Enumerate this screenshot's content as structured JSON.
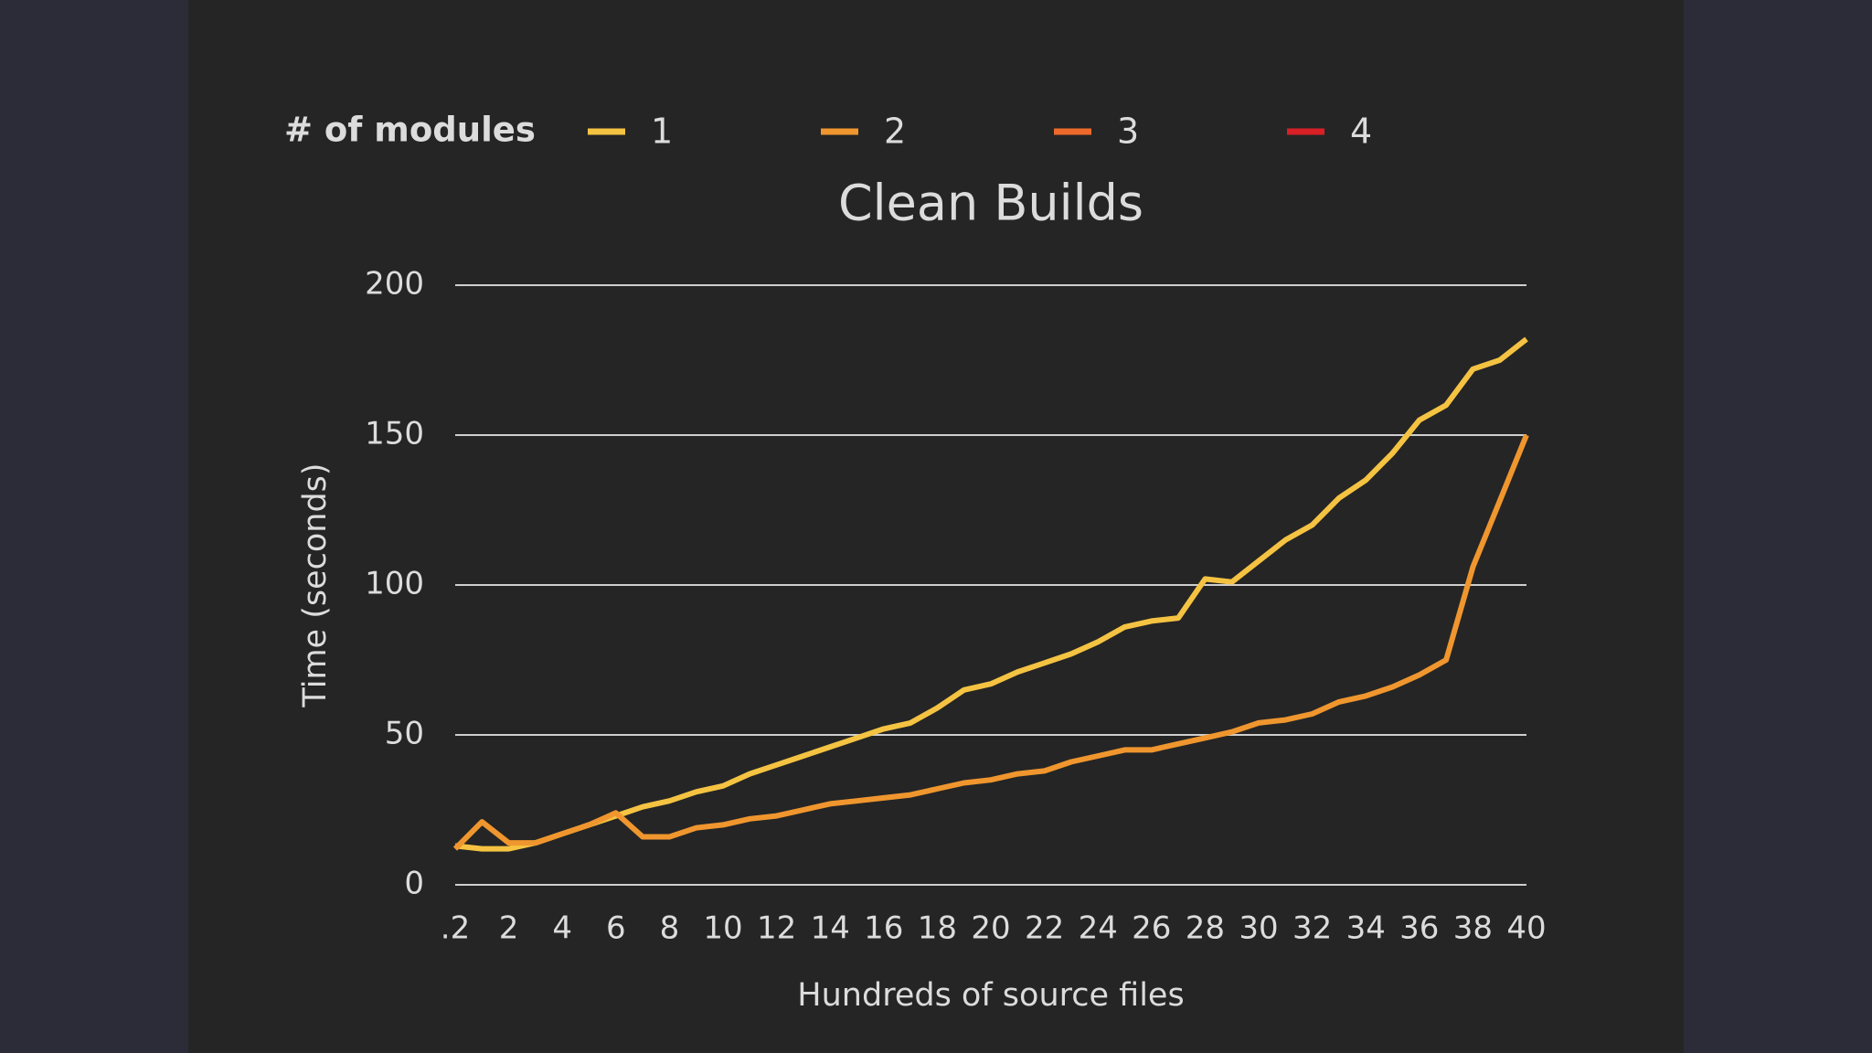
{
  "chart_data": {
    "type": "line",
    "title": "Clean Builds",
    "legend_title": "# of modules",
    "x_label": "Hundreds of source files",
    "y_label": "Time (seconds)",
    "categories": [
      ".2",
      null,
      "2",
      null,
      "4",
      null,
      "6",
      null,
      "8",
      null,
      "10",
      null,
      "12",
      null,
      "14",
      null,
      "16",
      null,
      "18",
      null,
      "20",
      null,
      "22",
      null,
      "24",
      null,
      "26",
      null,
      "28",
      null,
      "30",
      null,
      "32",
      null,
      "34",
      null,
      "36",
      null,
      "38",
      null,
      "40"
    ],
    "series": [
      {
        "name": "1",
        "color": "#f5c342",
        "values": [
          13,
          12,
          12,
          14,
          17,
          20,
          23,
          26,
          28,
          31,
          33,
          37,
          40,
          43,
          46,
          49,
          52,
          54,
          59,
          65,
          67,
          71,
          74,
          77,
          81,
          86,
          88,
          89,
          102,
          101,
          108,
          115,
          120,
          129,
          135,
          144,
          155,
          160,
          172,
          175,
          182
        ]
      },
      {
        "name": "2",
        "color": "#f0962e",
        "values": [
          12,
          21,
          14,
          14,
          17,
          20,
          24,
          16,
          16,
          19,
          20,
          22,
          23,
          25,
          27,
          28,
          29,
          30,
          32,
          34,
          35,
          37,
          38,
          41,
          43,
          45,
          45,
          47,
          49,
          51,
          54,
          55,
          57,
          61,
          63,
          66,
          70,
          75,
          106,
          128,
          150
        ]
      },
      {
        "name": "3",
        "color": "#ee6a2a",
        "values": [
          null,
          null,
          null,
          null,
          null,
          null,
          null,
          null,
          null,
          null,
          null,
          null,
          null,
          null,
          null,
          null,
          null,
          null,
          null,
          null,
          null,
          null,
          null,
          null,
          null,
          null,
          null,
          null,
          null,
          null,
          null,
          null,
          null,
          null,
          null,
          null,
          null,
          null,
          null,
          null,
          null
        ]
      },
      {
        "name": "4",
        "color": "#d91f26",
        "values": [
          null,
          null,
          null,
          null,
          null,
          null,
          null,
          null,
          null,
          null,
          null,
          null,
          null,
          null,
          null,
          null,
          null,
          null,
          null,
          null,
          null,
          null,
          null,
          null,
          null,
          null,
          null,
          null,
          null,
          null,
          null,
          null,
          null,
          null,
          null,
          null,
          null,
          null,
          null,
          null,
          null
        ]
      }
    ],
    "ylim": [
      0,
      200
    ],
    "yticks": [
      0,
      50,
      100,
      150,
      200
    ],
    "grid": true
  }
}
